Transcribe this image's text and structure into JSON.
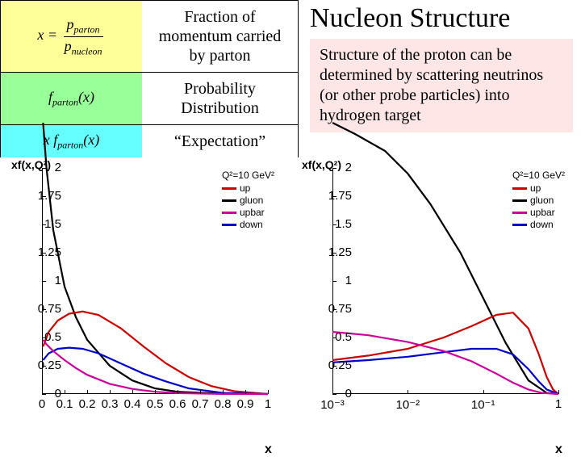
{
  "title": "Nucleon Structure",
  "description": "Structure of the proton can be determined by scattering neutrinos (or other probe particles) into hydrogen target",
  "table": {
    "rows": [
      {
        "label": "Fraction of momentum carried by parton",
        "bg": "yellow"
      },
      {
        "label": "Probability Distribution",
        "bg": "green"
      },
      {
        "label": "“Expectation”",
        "bg": "cyan"
      }
    ]
  },
  "formulas": {
    "x_def_lhs": "x =",
    "p_parton": "p",
    "p_parton_sub": "parton",
    "p_nucleon": "p",
    "p_nucleon_sub": "nucleon",
    "f_parton": "f",
    "f_parton_sub": "parton",
    "of_x": "(x)",
    "xf": "x f",
    "xf_sub": "parton",
    "xf_of_x": "(x)"
  },
  "chart_common": {
    "yaxis_label": "xf(x,Q²)",
    "xaxis_label": "x",
    "ylim": [
      0,
      2
    ],
    "yticks": [
      0,
      0.25,
      0.5,
      0.75,
      1,
      1.25,
      1.5,
      1.75,
      2
    ],
    "ytick_labels": [
      "0",
      "0.25",
      "0.5",
      "0.75",
      "1",
      "1.25",
      "1.5",
      "1.75",
      "2"
    ],
    "legend_title": "Q²=10  GeV²",
    "series": [
      {
        "name": "up",
        "color": "#cc0000"
      },
      {
        "name": "gluon",
        "color": "#000000"
      },
      {
        "name": "upbar",
        "color": "#cc0099"
      },
      {
        "name": "down",
        "color": "#0000cc"
      }
    ],
    "line_width": 2.2
  },
  "chart_left": {
    "xscale": "linear",
    "xlim": [
      0,
      1
    ],
    "xticks": [
      0,
      0.1,
      0.2,
      0.3,
      0.4,
      0.5,
      0.6,
      0.7,
      0.8,
      0.9,
      1
    ],
    "xtick_labels": [
      "0",
      "0.1",
      "0.2",
      "0.3",
      "0.4",
      "0.5",
      "0.6",
      "0.7",
      "0.8",
      "0.9",
      "1"
    ],
    "curves": {
      "gluon": [
        [
          0.005,
          2.4
        ],
        [
          0.02,
          2.0
        ],
        [
          0.05,
          1.45
        ],
        [
          0.1,
          0.95
        ],
        [
          0.15,
          0.68
        ],
        [
          0.2,
          0.48
        ],
        [
          0.3,
          0.25
        ],
        [
          0.4,
          0.12
        ],
        [
          0.5,
          0.05
        ],
        [
          0.6,
          0.02
        ],
        [
          0.8,
          0.003
        ],
        [
          1.0,
          0
        ]
      ],
      "up": [
        [
          0.005,
          0.42
        ],
        [
          0.03,
          0.55
        ],
        [
          0.07,
          0.65
        ],
        [
          0.12,
          0.71
        ],
        [
          0.18,
          0.73
        ],
        [
          0.25,
          0.7
        ],
        [
          0.35,
          0.58
        ],
        [
          0.45,
          0.42
        ],
        [
          0.55,
          0.27
        ],
        [
          0.65,
          0.15
        ],
        [
          0.75,
          0.07
        ],
        [
          0.85,
          0.025
        ],
        [
          1.0,
          0
        ]
      ],
      "down": [
        [
          0.005,
          0.3
        ],
        [
          0.03,
          0.36
        ],
        [
          0.07,
          0.4
        ],
        [
          0.12,
          0.41
        ],
        [
          0.18,
          0.4
        ],
        [
          0.25,
          0.36
        ],
        [
          0.35,
          0.27
        ],
        [
          0.45,
          0.18
        ],
        [
          0.55,
          0.11
        ],
        [
          0.65,
          0.05
        ],
        [
          0.8,
          0.01
        ],
        [
          1.0,
          0
        ]
      ],
      "upbar": [
        [
          0.005,
          0.48
        ],
        [
          0.02,
          0.44
        ],
        [
          0.05,
          0.38
        ],
        [
          0.1,
          0.3
        ],
        [
          0.15,
          0.23
        ],
        [
          0.2,
          0.17
        ],
        [
          0.3,
          0.09
        ],
        [
          0.4,
          0.045
        ],
        [
          0.5,
          0.02
        ],
        [
          0.6,
          0.008
        ],
        [
          0.8,
          0.001
        ],
        [
          1.0,
          0
        ]
      ]
    }
  },
  "chart_right": {
    "xscale": "log",
    "xlim": [
      0.001,
      1
    ],
    "xticks": [
      0.001,
      0.01,
      0.1,
      1
    ],
    "xtick_labels": [
      "10⁻³",
      "10⁻²",
      "10⁻¹",
      "1"
    ],
    "curves": {
      "gluon": [
        [
          0.001,
          2.4
        ],
        [
          0.002,
          2.3
        ],
        [
          0.005,
          2.15
        ],
        [
          0.01,
          1.95
        ],
        [
          0.02,
          1.68
        ],
        [
          0.05,
          1.25
        ],
        [
          0.1,
          0.85
        ],
        [
          0.2,
          0.45
        ],
        [
          0.4,
          0.12
        ],
        [
          0.7,
          0.01
        ],
        [
          1.0,
          0
        ]
      ],
      "up": [
        [
          0.001,
          0.3
        ],
        [
          0.003,
          0.34
        ],
        [
          0.01,
          0.4
        ],
        [
          0.03,
          0.5
        ],
        [
          0.07,
          0.6
        ],
        [
          0.15,
          0.7
        ],
        [
          0.25,
          0.72
        ],
        [
          0.4,
          0.58
        ],
        [
          0.55,
          0.35
        ],
        [
          0.7,
          0.15
        ],
        [
          0.85,
          0.04
        ],
        [
          1.0,
          0
        ]
      ],
      "down": [
        [
          0.001,
          0.28
        ],
        [
          0.003,
          0.3
        ],
        [
          0.01,
          0.33
        ],
        [
          0.03,
          0.37
        ],
        [
          0.07,
          0.4
        ],
        [
          0.15,
          0.4
        ],
        [
          0.25,
          0.35
        ],
        [
          0.4,
          0.22
        ],
        [
          0.55,
          0.11
        ],
        [
          0.7,
          0.04
        ],
        [
          1.0,
          0
        ]
      ],
      "upbar": [
        [
          0.001,
          0.55
        ],
        [
          0.003,
          0.52
        ],
        [
          0.01,
          0.46
        ],
        [
          0.03,
          0.38
        ],
        [
          0.07,
          0.29
        ],
        [
          0.15,
          0.18
        ],
        [
          0.25,
          0.1
        ],
        [
          0.4,
          0.04
        ],
        [
          0.6,
          0.01
        ],
        [
          1.0,
          0
        ]
      ]
    }
  }
}
